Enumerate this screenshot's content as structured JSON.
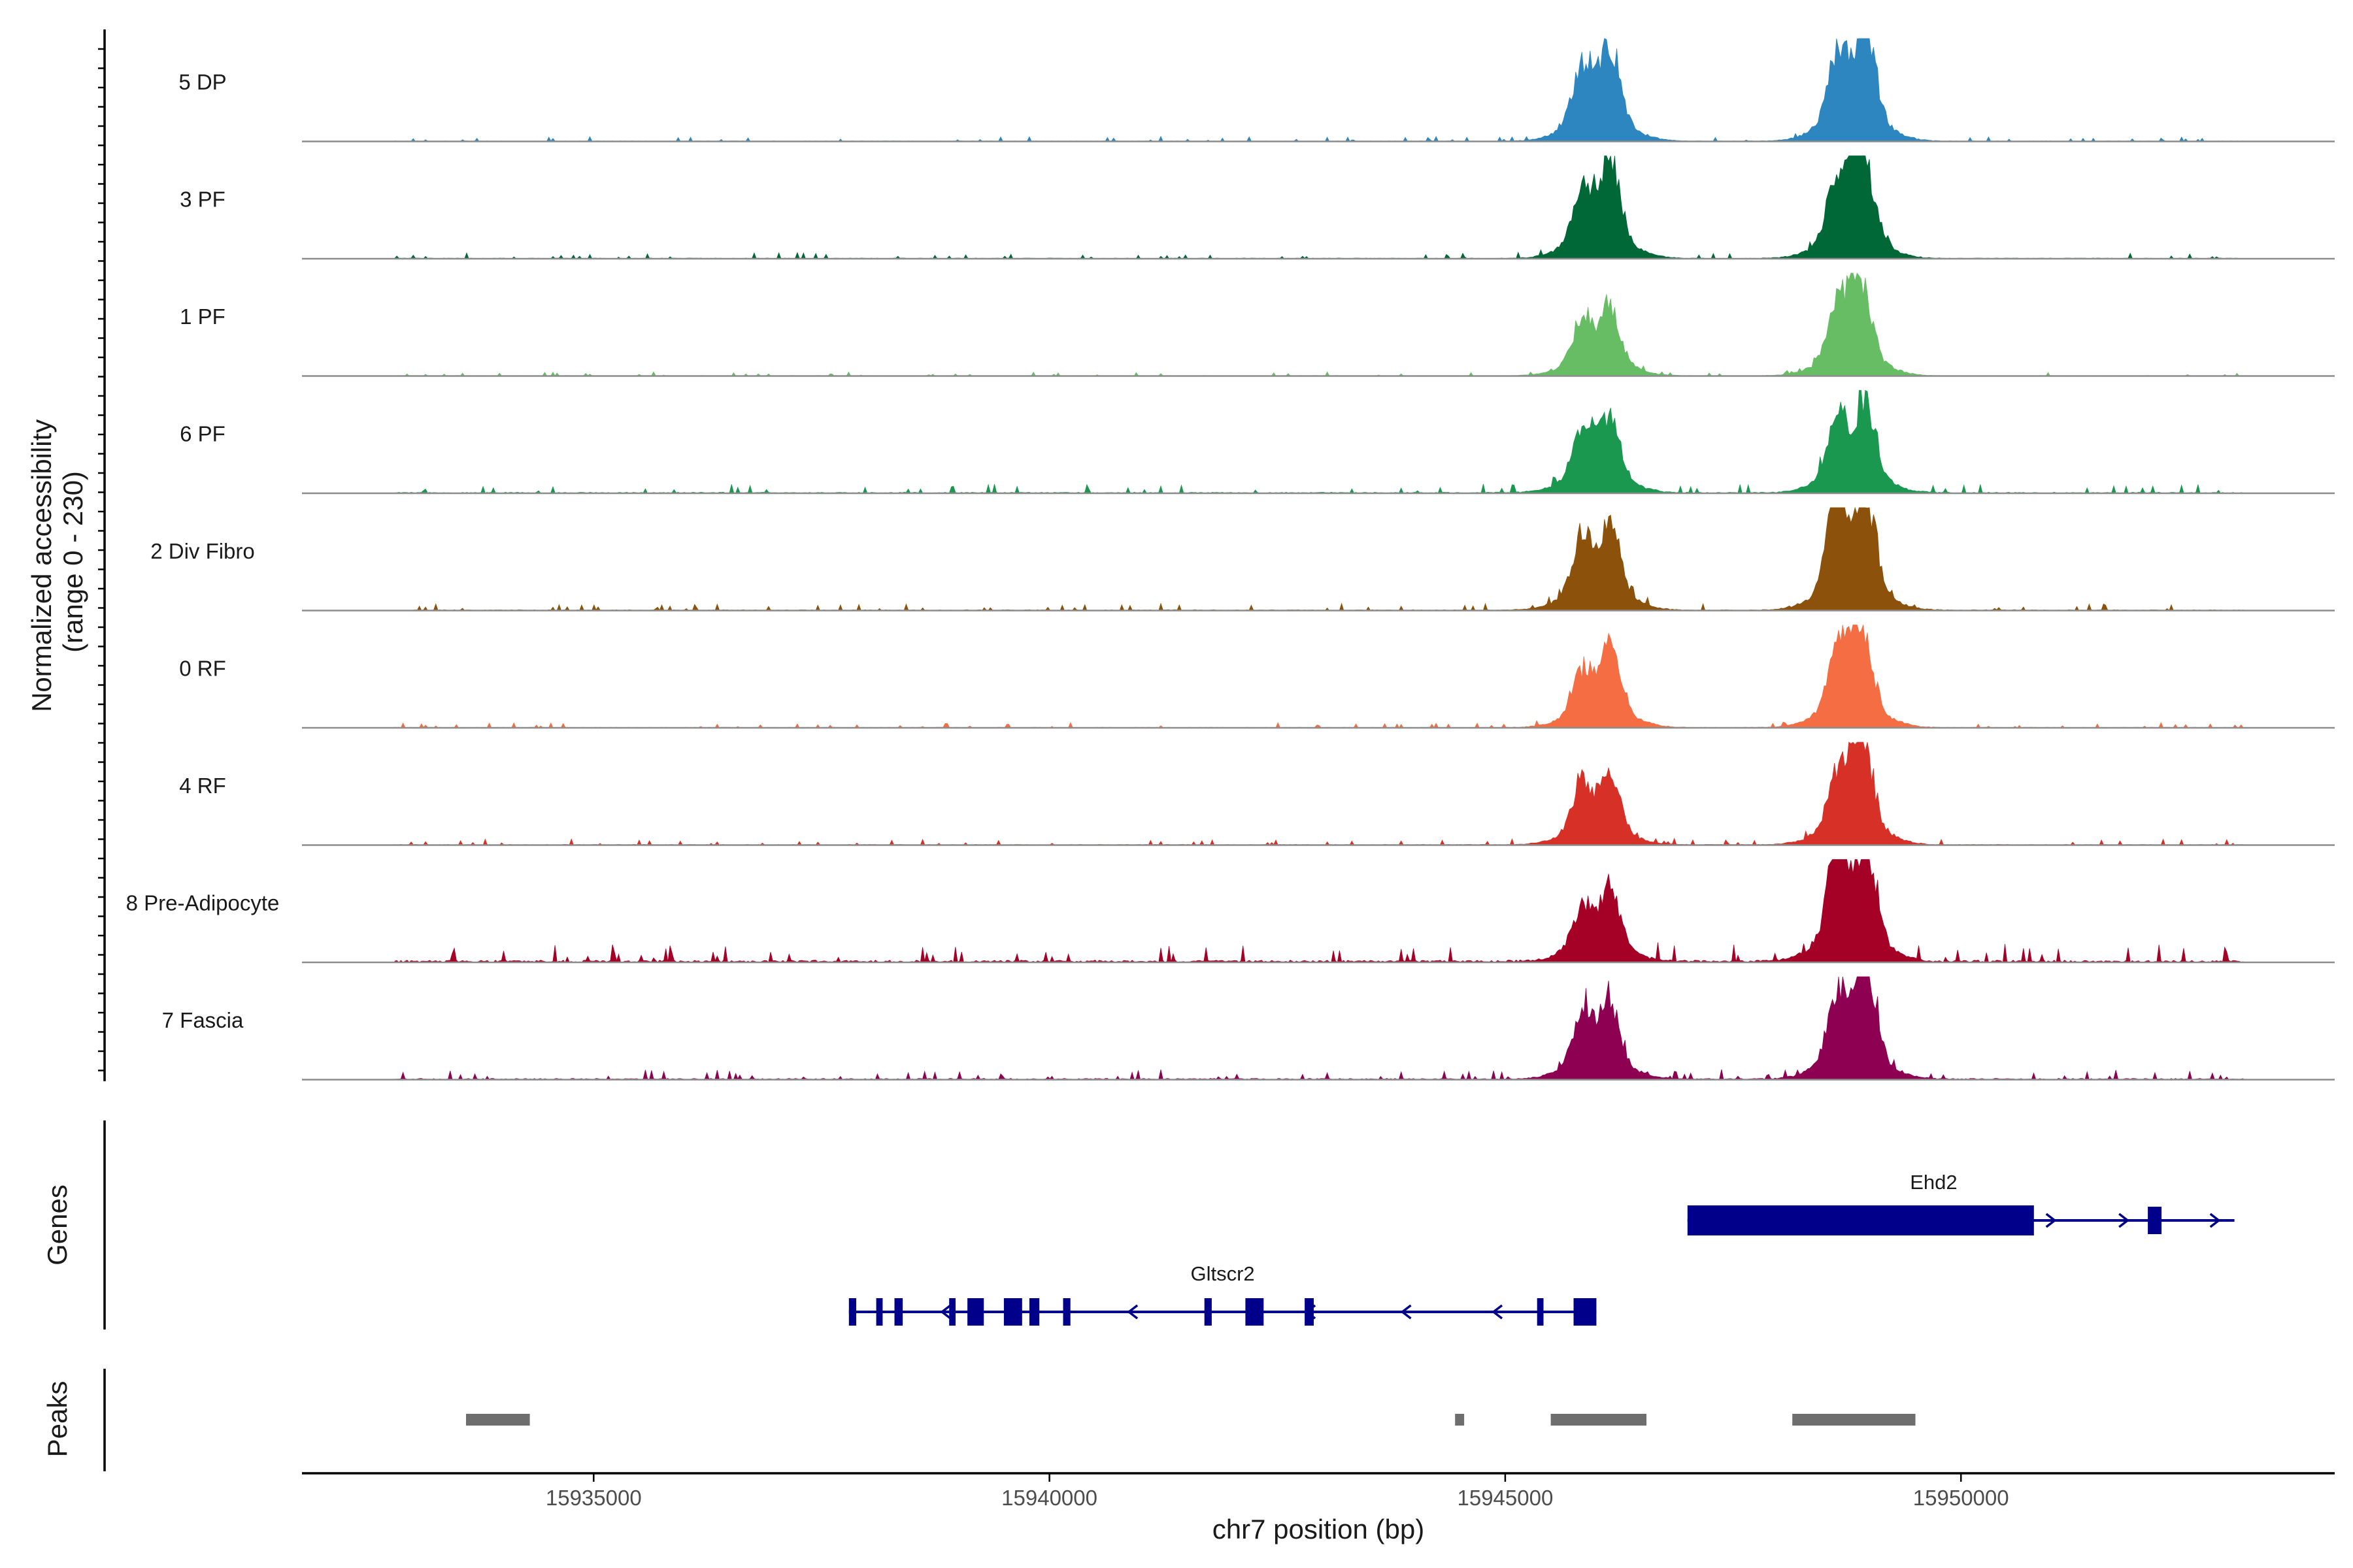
{
  "chart_data": {
    "type": "area",
    "chromosome": "chr7",
    "x_axis": {
      "label": "chr7 position (bp)",
      "range": [
        15931800,
        15954100
      ],
      "ticks": [
        15935000,
        15940000,
        15945000,
        15950000
      ],
      "tick_labels": [
        "15935000",
        "15940000",
        "15945000",
        "15950000"
      ]
    },
    "y_axis": {
      "label_line1": "Normalized accessibility",
      "label_line2": "(range 0 - 230)",
      "range": [
        0,
        230
      ]
    },
    "tracks": [
      {
        "name": "5 DP",
        "color": "#2E86C1",
        "peaks": [
          {
            "pos": 15945850,
            "height": 0.62
          },
          {
            "pos": 15946150,
            "height": 0.78
          },
          {
            "pos": 15948650,
            "height": 0.72
          },
          {
            "pos": 15948950,
            "height": 0.95
          }
        ],
        "noise": 0.025
      },
      {
        "name": "3 PF",
        "color": "#006837",
        "peaks": [
          {
            "pos": 15945850,
            "height": 0.55
          },
          {
            "pos": 15946150,
            "height": 0.85
          },
          {
            "pos": 15948650,
            "height": 0.62
          },
          {
            "pos": 15948900,
            "height": 1.0
          }
        ],
        "noise": 0.03
      },
      {
        "name": "1 PF",
        "color": "#66BD63",
        "peaks": [
          {
            "pos": 15945850,
            "height": 0.45
          },
          {
            "pos": 15946150,
            "height": 0.55
          },
          {
            "pos": 15948650,
            "height": 0.55
          },
          {
            "pos": 15948900,
            "height": 0.78
          }
        ],
        "noise": 0.02
      },
      {
        "name": "6 PF",
        "color": "#1A9850",
        "peaks": [
          {
            "pos": 15945850,
            "height": 0.55
          },
          {
            "pos": 15946150,
            "height": 0.62
          },
          {
            "pos": 15948650,
            "height": 0.62
          },
          {
            "pos": 15948950,
            "height": 0.72
          }
        ],
        "noise": 0.045
      },
      {
        "name": "2 Div Fibro",
        "color": "#8C510A",
        "peaks": [
          {
            "pos": 15945850,
            "height": 0.62
          },
          {
            "pos": 15946150,
            "height": 0.72
          },
          {
            "pos": 15948650,
            "height": 1.0
          },
          {
            "pos": 15948950,
            "height": 0.9
          }
        ],
        "noise": 0.035
      },
      {
        "name": "0 RF",
        "color": "#F46D43",
        "peaks": [
          {
            "pos": 15945850,
            "height": 0.45
          },
          {
            "pos": 15946150,
            "height": 0.72
          },
          {
            "pos": 15948650,
            "height": 0.62
          },
          {
            "pos": 15948900,
            "height": 0.9
          }
        ],
        "noise": 0.025
      },
      {
        "name": "4 RF",
        "color": "#D73027",
        "peaks": [
          {
            "pos": 15945850,
            "height": 0.52
          },
          {
            "pos": 15946150,
            "height": 0.55
          },
          {
            "pos": 15948650,
            "height": 0.55
          },
          {
            "pos": 15948900,
            "height": 1.0
          }
        ],
        "noise": 0.03
      },
      {
        "name": "8 Pre-Adipocyte",
        "color": "#A50026",
        "peaks": [
          {
            "pos": 15945850,
            "height": 0.45
          },
          {
            "pos": 15946150,
            "height": 0.62
          },
          {
            "pos": 15948650,
            "height": 1.0
          },
          {
            "pos": 15948950,
            "height": 0.95
          }
        ],
        "noise": 0.09
      },
      {
        "name": "7 Fascia",
        "color": "#8E0152",
        "peaks": [
          {
            "pos": 15945850,
            "height": 0.55
          },
          {
            "pos": 15946150,
            "height": 0.62
          },
          {
            "pos": 15948650,
            "height": 0.72
          },
          {
            "pos": 15948950,
            "height": 1.0
          }
        ],
        "noise": 0.05
      }
    ],
    "genes_panel_label": "Genes",
    "genes": [
      {
        "name": "Ehd2",
        "strand": "+",
        "color": "#00008B",
        "start": 15947000,
        "end": 15953000,
        "exons": [
          [
            15947000,
            15950800
          ],
          [
            15952050,
            15952200
          ]
        ],
        "chevrons": [
          15951000,
          15951800,
          15952800
        ]
      },
      {
        "name": "Gltscr2",
        "strand": "-",
        "color": "#00008B",
        "start": 15937800,
        "end": 15946000,
        "exons": [
          [
            15937800,
            15937880
          ],
          [
            15938100,
            15938170
          ],
          [
            15938300,
            15938390
          ],
          [
            15938900,
            15938970
          ],
          [
            15939100,
            15939280
          ],
          [
            15939500,
            15939700
          ],
          [
            15939780,
            15939890
          ],
          [
            15940150,
            15940230
          ],
          [
            15941700,
            15941780
          ],
          [
            15942150,
            15942350
          ],
          [
            15942800,
            15942900
          ],
          [
            15945350,
            15945420
          ],
          [
            15945750,
            15946000
          ]
        ],
        "chevrons": [
          15938850,
          15940900,
          15942850,
          15943900,
          15944900
        ]
      }
    ],
    "peaks_panel_label": "Peaks",
    "peaks_color": "#6E6E6E",
    "peak_regions": [
      [
        15933600,
        15934300
      ],
      [
        15944450,
        15944550
      ],
      [
        15945500,
        15946550
      ],
      [
        15948150,
        15949500
      ]
    ]
  }
}
